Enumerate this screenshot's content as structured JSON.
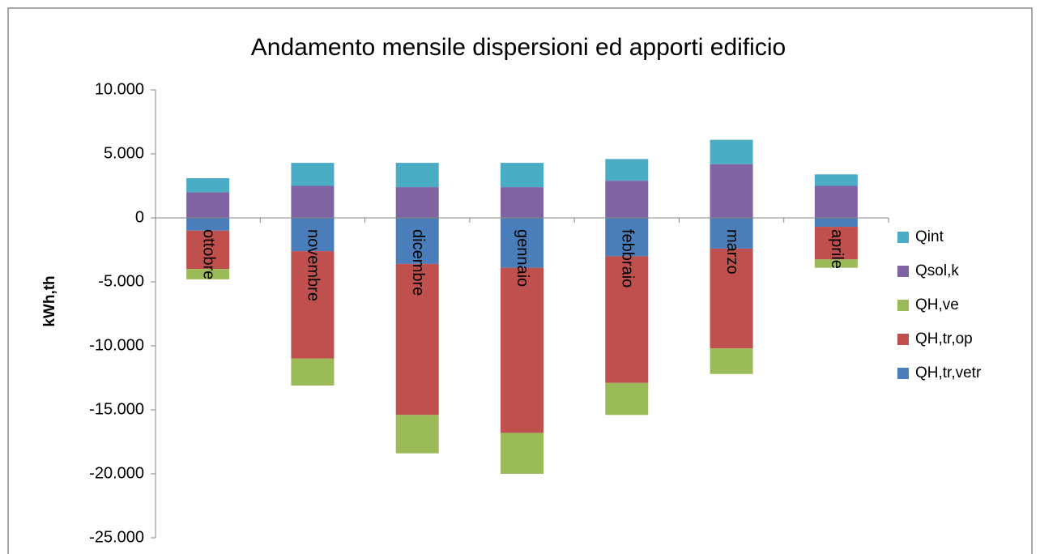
{
  "chart_data": {
    "type": "bar",
    "stacked": true,
    "title": "Andamento mensile dispersioni ed apporti edificio",
    "y_label": "kWh,th",
    "categories": [
      "ottobre",
      "novembre",
      "dicembre",
      "gennaio",
      "febbraio",
      "marzo",
      "aprile"
    ],
    "series": [
      {
        "name": "QH,tr,vetr",
        "color": "#4a7ebb",
        "values": [
          -1000,
          -2600,
          -3600,
          -3900,
          -3000,
          -2400,
          -700
        ]
      },
      {
        "name": "QH,tr,op",
        "color": "#c0504d",
        "values": [
          -3000,
          -8400,
          -11800,
          -12900,
          -9900,
          -7800,
          -2550
        ]
      },
      {
        "name": "QH,ve",
        "color": "#9bbb59",
        "values": [
          -800,
          -2100,
          -3000,
          -3200,
          -2500,
          -2000,
          -650
        ]
      },
      {
        "name": "Qsol,k",
        "color": "#8064a2",
        "values": [
          2000,
          2500,
          2400,
          2400,
          2900,
          4200,
          2500
        ]
      },
      {
        "name": "Qint",
        "color": "#4bacc6",
        "values": [
          1100,
          1800,
          1900,
          1900,
          1700,
          1900,
          900
        ]
      }
    ],
    "ylim": [
      -25000,
      10000
    ],
    "yticks": [
      {
        "value": -25000,
        "label": "-25.000"
      },
      {
        "value": -20000,
        "label": "-20.000"
      },
      {
        "value": -15000,
        "label": "-15.000"
      },
      {
        "value": -10000,
        "label": "-10.000"
      },
      {
        "value": -5000,
        "label": "-5.000"
      },
      0,
      {
        "value": 5000,
        "label": "5.000"
      },
      {
        "value": 10000,
        "label": "10.000"
      }
    ],
    "legend": "right"
  }
}
